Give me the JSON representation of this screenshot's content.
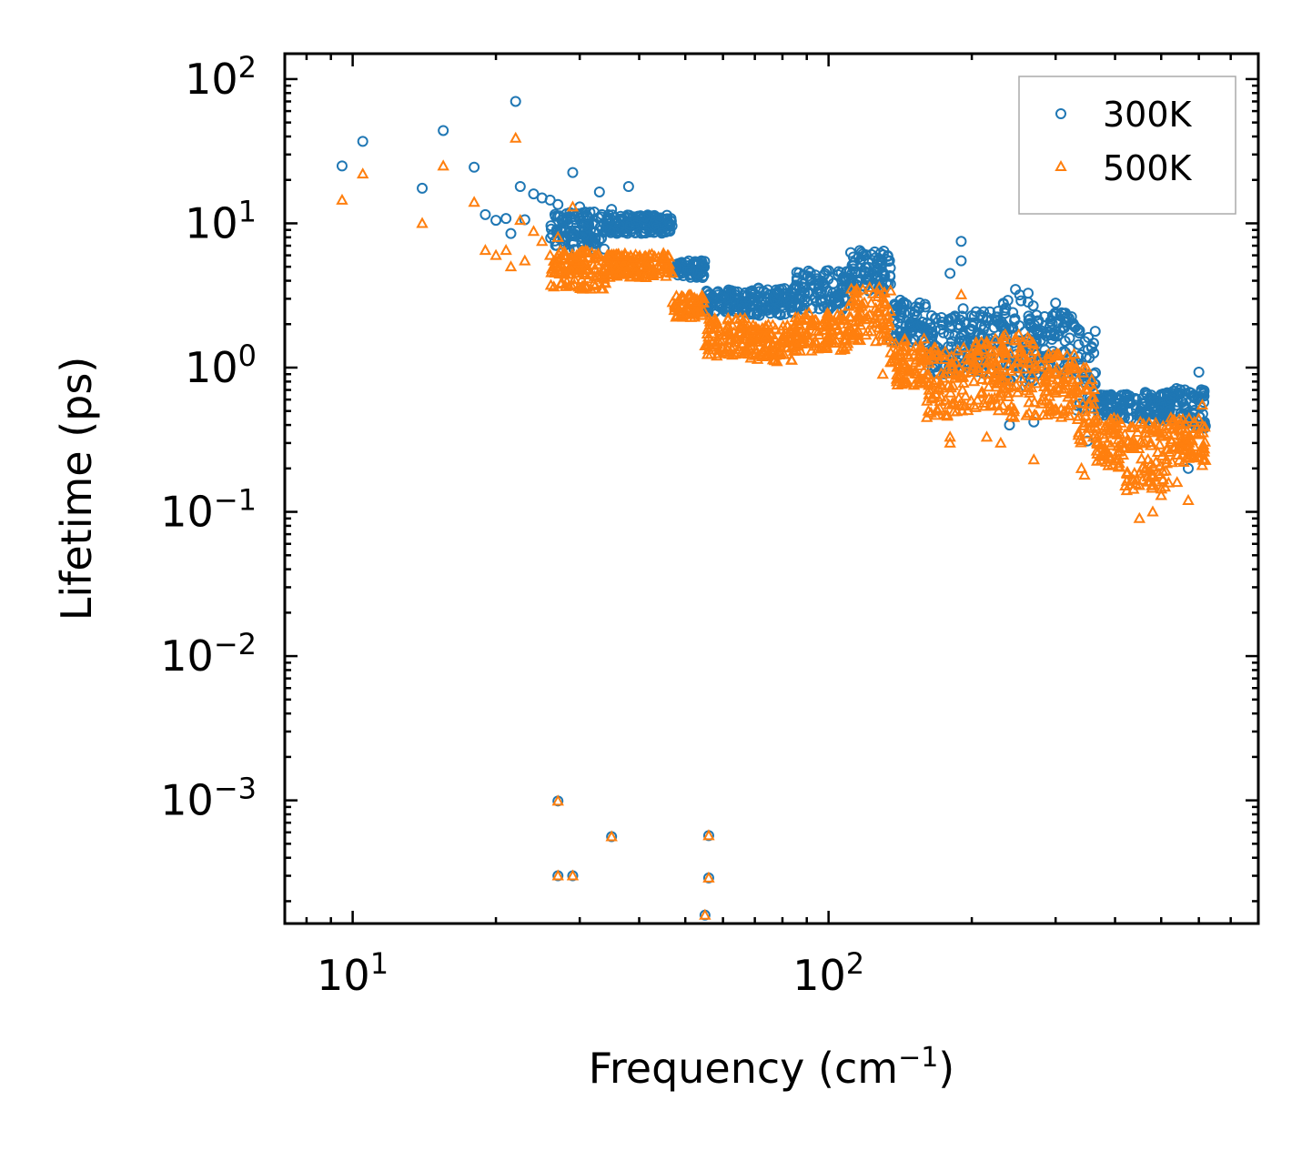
{
  "chart_data": {
    "type": "scatter",
    "title": "",
    "xlabel": "Frequency (cm",
    "xlabel_sup": "−1",
    "xlabel_end": ")",
    "ylabel": "Lifetime (ps)",
    "xscale": "log",
    "yscale": "log",
    "xlim": [
      7.2,
      800
    ],
    "ylim": [
      0.00014,
      150
    ],
    "x_ticks": [
      {
        "base": "10",
        "exp": "1",
        "value": 10
      },
      {
        "base": "10",
        "exp": "2",
        "value": 100
      }
    ],
    "y_ticks": [
      {
        "base": "10",
        "exp": "2",
        "value": 100
      },
      {
        "base": "10",
        "exp": "1",
        "value": 10
      },
      {
        "base": "10",
        "exp": "0",
        "value": 1
      },
      {
        "base": "10",
        "exp": "−1",
        "value": 0.1
      },
      {
        "base": "10",
        "exp": "−2",
        "value": 0.01
      },
      {
        "base": "10",
        "exp": "−3",
        "value": 0.001
      }
    ],
    "legend_position": "top-right",
    "series": [
      {
        "name": "300K",
        "marker": "circle",
        "color": "#1f77b4",
        "points": [
          [
            9.5,
            25
          ],
          [
            10.5,
            37
          ],
          [
            14,
            17.5
          ],
          [
            15.5,
            44
          ],
          [
            18,
            24.5
          ],
          [
            19,
            11.5
          ],
          [
            20,
            10.5
          ],
          [
            21,
            10.8
          ],
          [
            21.5,
            8.5
          ],
          [
            22,
            70
          ],
          [
            22.5,
            18
          ],
          [
            23,
            10.6
          ],
          [
            24,
            16
          ],
          [
            25,
            15
          ],
          [
            26,
            14.5
          ],
          [
            27,
            13.5
          ],
          [
            27.5,
            10.5
          ],
          [
            29,
            22.5
          ],
          [
            30,
            13
          ],
          [
            33,
            16.5
          ],
          [
            35,
            12.5
          ],
          [
            38,
            18
          ],
          [
            27,
            0.00099
          ],
          [
            27,
            0.0003
          ],
          [
            29,
            0.0003
          ],
          [
            35,
            0.00056
          ],
          [
            55,
            0.00016
          ],
          [
            56,
            0.00057
          ],
          [
            56,
            0.00029
          ],
          [
            180,
            4.5
          ],
          [
            190,
            7.5
          ],
          [
            190,
            5.5
          ],
          [
            300,
            2.8
          ],
          [
            330,
            1.9
          ],
          [
            350,
            0.31
          ],
          [
            570,
            0.2
          ],
          [
            600,
            0.93
          ],
          [
            240,
            0.4
          ],
          [
            270,
            0.42
          ]
        ],
        "segments": [
          [
            26,
            34,
            6.5,
            12,
            7,
            0
          ],
          [
            34,
            47,
            8.5,
            11.5,
            7,
            0
          ],
          [
            47,
            55,
            4.2,
            5.5,
            7,
            0
          ],
          [
            55,
            68,
            2.4,
            3.5,
            7,
            0
          ],
          [
            68,
            85,
            2.3,
            3.6,
            7,
            0
          ],
          [
            85,
            110,
            2.5,
            4.8,
            7,
            0
          ],
          [
            110,
            135,
            3.4,
            6.5,
            7,
            0
          ],
          [
            135,
            160,
            1.5,
            3.0,
            7,
            0
          ],
          [
            160,
            190,
            0.9,
            2.3,
            7,
            0
          ],
          [
            190,
            230,
            0.9,
            2.6,
            7,
            0
          ],
          [
            230,
            270,
            0.7,
            3.5,
            7,
            0
          ],
          [
            270,
            330,
            0.9,
            2.4,
            7,
            0
          ],
          [
            330,
            365,
            0.5,
            1.9,
            7,
            0
          ],
          [
            365,
            420,
            0.45,
            0.65,
            7,
            0
          ],
          [
            420,
            520,
            0.42,
            0.68,
            7,
            0
          ],
          [
            520,
            620,
            0.38,
            0.72,
            7,
            0
          ]
        ]
      },
      {
        "name": "500K",
        "marker": "triangle",
        "color": "#ff7f0e",
        "points": [
          [
            9.5,
            14.5
          ],
          [
            10.5,
            22
          ],
          [
            14,
            10
          ],
          [
            15.5,
            25
          ],
          [
            18,
            14
          ],
          [
            19,
            6.5
          ],
          [
            20,
            6
          ],
          [
            21,
            6.5
          ],
          [
            21.5,
            5
          ],
          [
            22,
            39
          ],
          [
            22.5,
            10.5
          ],
          [
            23,
            5.5
          ],
          [
            24,
            8.8
          ],
          [
            25,
            7.5
          ],
          [
            26,
            6
          ],
          [
            27,
            8
          ],
          [
            29,
            13
          ],
          [
            27,
            0.00099
          ],
          [
            27,
            0.0003
          ],
          [
            29,
            0.0003
          ],
          [
            35,
            0.00056
          ],
          [
            55,
            0.00016
          ],
          [
            56,
            0.00057
          ],
          [
            56,
            0.00029
          ],
          [
            180,
            0.3
          ],
          [
            180,
            0.33
          ],
          [
            190,
            3.2
          ],
          [
            215,
            0.33
          ],
          [
            230,
            0.3
          ],
          [
            270,
            0.23
          ],
          [
            340,
            0.2
          ],
          [
            345,
            0.18
          ],
          [
            450,
            0.09
          ],
          [
            480,
            0.1
          ],
          [
            500,
            0.13
          ],
          [
            540,
            0.16
          ],
          [
            570,
            0.12
          ],
          [
            610,
            0.21
          ],
          [
            610,
            0.55
          ],
          [
            130,
            0.9
          ],
          [
            140,
            0.85
          ]
        ],
        "segments": [
          [
            26,
            34,
            3.5,
            6.5,
            7,
            1
          ],
          [
            34,
            47,
            4.2,
            6.2,
            7,
            1
          ],
          [
            47,
            55,
            2.2,
            3.2,
            7,
            1
          ],
          [
            55,
            68,
            1.2,
            2.2,
            7,
            1
          ],
          [
            68,
            85,
            1.1,
            2.0,
            7,
            1
          ],
          [
            85,
            110,
            1.3,
            2.4,
            7,
            1
          ],
          [
            110,
            135,
            1.5,
            3.6,
            7,
            1
          ],
          [
            135,
            160,
            0.75,
            1.6,
            7,
            1
          ],
          [
            160,
            190,
            0.45,
            1.4,
            7,
            1
          ],
          [
            190,
            230,
            0.5,
            1.6,
            7,
            1
          ],
          [
            230,
            270,
            0.45,
            1.7,
            7,
            1
          ],
          [
            270,
            330,
            0.45,
            1.3,
            7,
            1
          ],
          [
            330,
            365,
            0.3,
            1.0,
            7,
            1
          ],
          [
            365,
            420,
            0.2,
            0.45,
            7,
            1
          ],
          [
            420,
            520,
            0.14,
            0.42,
            7,
            1
          ],
          [
            520,
            620,
            0.22,
            0.45,
            7,
            1
          ]
        ]
      }
    ]
  }
}
